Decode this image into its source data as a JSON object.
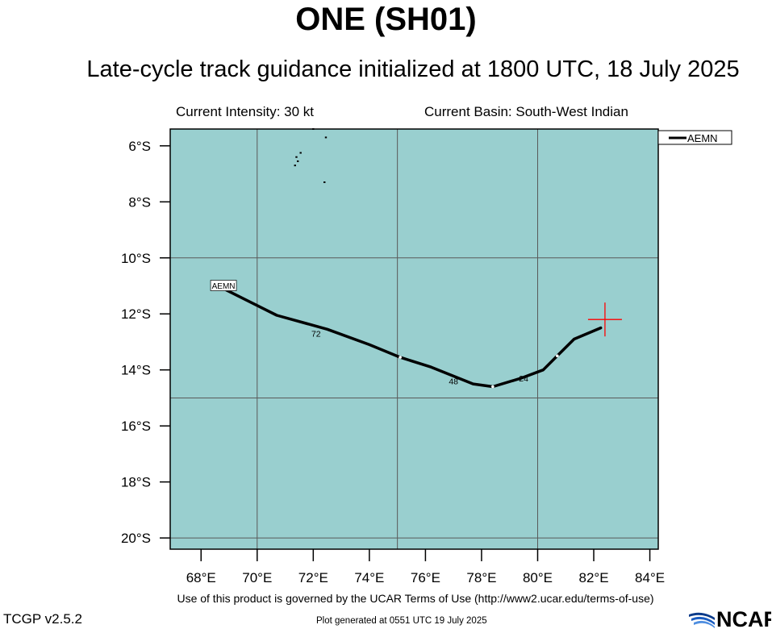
{
  "header": {
    "title": "ONE (SH01)",
    "subtitle": "Late-cycle track guidance initialized at 1800 UTC, 18 July 2025",
    "intensity": "Current Intensity: 30 kt",
    "basin": "Current Basin: South-West Indian"
  },
  "footer": {
    "terms": "Use of this product is governed by the UCAR Terms of Use (http://www2.ucar.edu/terms-of-use)",
    "version": "TCGP v2.5.2",
    "generated": "Plot generated at 0551 UTC   19 July 2025",
    "logo_text": "NCAR"
  },
  "colors": {
    "ocean": "#99cfcf",
    "grid": "#5a5a5a",
    "track": "#000000",
    "current_position": "#ff0000"
  },
  "chart_data": {
    "type": "line",
    "x_axis": {
      "ticks": [
        68,
        70,
        72,
        74,
        76,
        78,
        80,
        82,
        84
      ],
      "tick_labels": [
        "68°E",
        "70°E",
        "72°E",
        "74°E",
        "76°E",
        "78°E",
        "80°E",
        "82°E",
        "84°E"
      ]
    },
    "y_axis": {
      "ticks": [
        -6,
        -8,
        -10,
        -12,
        -14,
        -16,
        -18,
        -20
      ],
      "tick_labels": [
        "6°S",
        "8°S",
        "10°S",
        "12°S",
        "14°S",
        "16°S",
        "18°S",
        "20°S"
      ]
    },
    "xlim": [
      66.9,
      84.3
    ],
    "ylim": [
      -20.4,
      -5.4
    ],
    "grid": true,
    "gridlines_lon": [
      70,
      75,
      80
    ],
    "gridlines_lat": [
      -10,
      -15,
      -20
    ],
    "legend": {
      "placement": "top-right",
      "entries": [
        "AEMN"
      ]
    },
    "series": [
      {
        "name": "AEMN",
        "points": [
          {
            "lon": 82.25,
            "lat": -12.5
          },
          {
            "lon": 81.3,
            "lat": -12.9
          },
          {
            "lon": 80.7,
            "lat": -13.5
          },
          {
            "lon": 80.2,
            "lat": -14.0
          },
          {
            "lon": 79.4,
            "lat": -14.3
          },
          {
            "lon": 78.4,
            "lat": -14.6
          },
          {
            "lon": 77.7,
            "lat": -14.5
          },
          {
            "lon": 76.2,
            "lat": -13.9
          },
          {
            "lon": 75.1,
            "lat": -13.55
          },
          {
            "lon": 74.0,
            "lat": -13.1
          },
          {
            "lon": 72.5,
            "lat": -12.55
          },
          {
            "lon": 70.7,
            "lat": -12.05
          },
          {
            "lon": 68.9,
            "lat": -11.15
          }
        ],
        "tau_markers": [
          {
            "lon": 80.7,
            "lat": -13.5
          },
          {
            "lon": 78.4,
            "lat": -14.6
          },
          {
            "lon": 75.1,
            "lat": -13.55
          }
        ],
        "tau_labels": [
          {
            "text": "24",
            "lon": 79.5,
            "lat": -14.3
          },
          {
            "text": "48",
            "lon": 77.0,
            "lat": -14.4
          },
          {
            "text": "72",
            "lon": 72.1,
            "lat": -12.7
          }
        ],
        "end_label": {
          "text": "AEMN",
          "lon": 68.8,
          "lat": -11.0
        }
      }
    ],
    "current_position": {
      "lon": 82.4,
      "lat": -12.2
    },
    "islands": [
      {
        "lon": 71.4,
        "lat": -6.4
      },
      {
        "lon": 71.55,
        "lat": -6.25
      },
      {
        "lon": 71.35,
        "lat": -6.7
      },
      {
        "lon": 71.45,
        "lat": -6.55
      },
      {
        "lon": 72.4,
        "lat": -7.3
      },
      {
        "lon": 72.0,
        "lat": -5.4
      },
      {
        "lon": 72.45,
        "lat": -5.7
      }
    ]
  }
}
